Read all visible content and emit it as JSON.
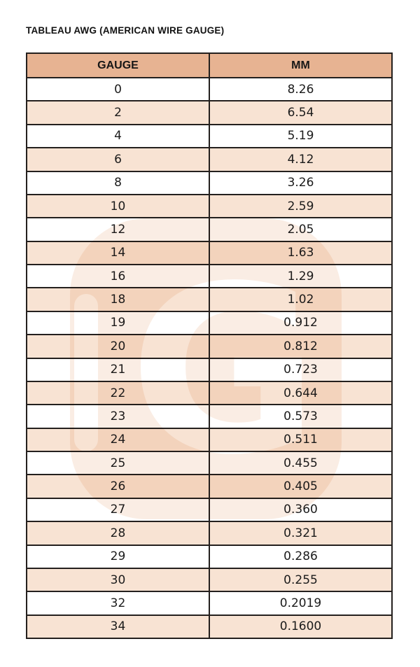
{
  "page": {
    "title": "TABLEAU AWG (AMERICAN WIRE GAUGE)"
  },
  "table": {
    "columns": [
      "GAUGE",
      "MM"
    ],
    "rows": [
      [
        "0",
        "8.26"
      ],
      [
        "2",
        "6.54"
      ],
      [
        "4",
        "5.19"
      ],
      [
        "6",
        "4.12"
      ],
      [
        "8",
        "3.26"
      ],
      [
        "10",
        "2.59"
      ],
      [
        "12",
        "2.05"
      ],
      [
        "14",
        "1.63"
      ],
      [
        "16",
        "1.29"
      ],
      [
        "18",
        "1.02"
      ],
      [
        "19",
        "0.912"
      ],
      [
        "20",
        "0.812"
      ],
      [
        "21",
        "0.723"
      ],
      [
        "22",
        "0.644"
      ],
      [
        "23",
        "0.573"
      ],
      [
        "24",
        "0.511"
      ],
      [
        "25",
        "0.455"
      ],
      [
        "26",
        "0.405"
      ],
      [
        "27",
        "0.360"
      ],
      [
        "28",
        "0.321"
      ],
      [
        "29",
        "0.286"
      ],
      [
        "30",
        "0.255"
      ],
      [
        "32",
        "0.2019"
      ],
      [
        "34",
        "0.1600"
      ]
    ]
  },
  "watermark": {
    "letter": "G"
  },
  "colors": {
    "header_bg": "#e7b392",
    "row_bg": "#ffffff",
    "row_alt_bg": "#f8e3d3",
    "border": "#24201e",
    "text": "#1b1b1b",
    "watermark_pink": "#f5dcc9"
  }
}
